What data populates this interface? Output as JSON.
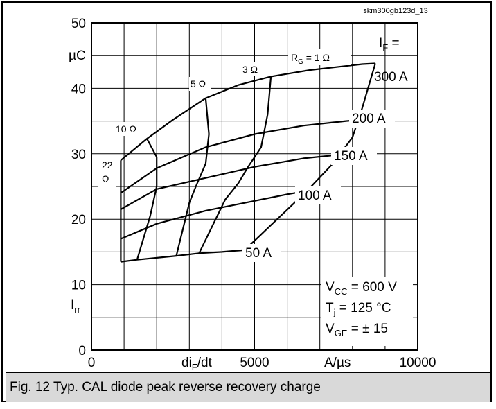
{
  "chart_id": "skm300gb123d_13",
  "caption": "Fig. 12 Typ. CAL diode peak reverse recovery charge",
  "chart_data": {
    "type": "line",
    "xlabel_parts": {
      "pre": "di",
      "sub": "F",
      "post": "/dt"
    },
    "x_unit": "A/µs",
    "y_unit": "µC",
    "ylabel_parts": {
      "pre": "I",
      "sub": "rr"
    },
    "xlim": [
      0,
      10000
    ],
    "ylim": [
      0,
      50
    ],
    "x_ticks": [
      "0",
      "5000",
      "10000"
    ],
    "y_ticks": [
      "0",
      "10",
      "20",
      "30",
      "40",
      "50"
    ],
    "legend_if": {
      "pre": "I",
      "sub": "F",
      "post": " ="
    },
    "conditions": {
      "vcc": {
        "pre": "V",
        "sub": "CC",
        "post": " = 600 V"
      },
      "tj": {
        "pre": "T",
        "sub": "j",
        "post": " = 125 °C"
      },
      "vge": {
        "pre": "V",
        "sub": "GE",
        "post": " = ± 15"
      }
    },
    "current_series": [
      {
        "label": "300 A",
        "points": [
          [
            900,
            29.0
          ],
          [
            1700,
            32.3
          ],
          [
            2500,
            35.2
          ],
          [
            3500,
            38.5
          ],
          [
            4500,
            40.5
          ],
          [
            5500,
            41.8
          ],
          [
            6700,
            42.8
          ],
          [
            7600,
            43.3
          ],
          [
            8300,
            43.7
          ],
          [
            8700,
            43.8
          ]
        ]
      },
      {
        "label": "200 A",
        "points": [
          [
            900,
            24.0
          ],
          [
            2000,
            27.8
          ],
          [
            3500,
            31.0
          ],
          [
            5000,
            33.0
          ],
          [
            6500,
            34.3
          ],
          [
            7800,
            35.0
          ],
          [
            9000,
            35.5
          ]
        ]
      },
      {
        "label": "150 A",
        "points": [
          [
            900,
            21.5
          ],
          [
            2000,
            24.6
          ],
          [
            3500,
            26.3
          ],
          [
            5000,
            28.0
          ],
          [
            6500,
            29.3
          ],
          [
            7700,
            29.9
          ],
          [
            8200,
            30.0
          ]
        ]
      },
      {
        "label": "100 A",
        "points": [
          [
            900,
            17.0
          ],
          [
            2000,
            19.3
          ],
          [
            3500,
            21.3
          ],
          [
            5000,
            22.8
          ],
          [
            6000,
            23.8
          ],
          [
            6600,
            24.3
          ]
        ]
      },
      {
        "label": "50 A",
        "points": [
          [
            900,
            13.5
          ],
          [
            1400,
            13.8
          ],
          [
            2600,
            14.4
          ],
          [
            3300,
            14.8
          ],
          [
            4000,
            15.0
          ],
          [
            4700,
            15.3
          ]
        ]
      }
    ],
    "rg_series": [
      {
        "label": "RG = 1 Ω",
        "pre": "R",
        "sub": "G",
        "post": " = 1 Ω",
        "points": [
          [
            8700,
            43.8
          ],
          [
            8300,
            37.0
          ],
          [
            8000,
            32.5
          ],
          [
            7400,
            28.5
          ],
          [
            6600,
            24.3
          ],
          [
            4700,
            15.3
          ]
        ]
      },
      {
        "label": "3 Ω",
        "points": [
          [
            5500,
            41.8
          ],
          [
            5400,
            36.0
          ],
          [
            5200,
            31.0
          ],
          [
            4800,
            28.0
          ],
          [
            4500,
            25.5
          ],
          [
            4100,
            23.0
          ],
          [
            3300,
            14.8
          ]
        ]
      },
      {
        "label": "5 Ω",
        "points": [
          [
            3500,
            38.5
          ],
          [
            3600,
            33.0
          ],
          [
            3500,
            28.5
          ],
          [
            3200,
            25.0
          ],
          [
            3000,
            22.5
          ],
          [
            2600,
            14.4
          ]
        ]
      },
      {
        "label": "10 Ω",
        "points": [
          [
            1700,
            32.3
          ],
          [
            2000,
            29.5
          ],
          [
            2000,
            25.0
          ],
          [
            1800,
            20.5
          ],
          [
            1400,
            13.8
          ]
        ]
      },
      {
        "label": "22 Ω",
        "points": [
          [
            900,
            29.0
          ],
          [
            900,
            24.0
          ],
          [
            900,
            21.5
          ],
          [
            900,
            17.0
          ],
          [
            900,
            13.5
          ]
        ]
      }
    ],
    "labels": {
      "rg_22_line1": "22",
      "rg_22_line2": "Ω",
      "rg_10": "10 Ω",
      "rg_5": "5 Ω",
      "rg_3": "3 Ω",
      "if_300": "300 A",
      "if_200": "200 A",
      "if_150": "150 A",
      "if_100": "100 A",
      "if_50": "50 A"
    },
    "grid": true
  }
}
